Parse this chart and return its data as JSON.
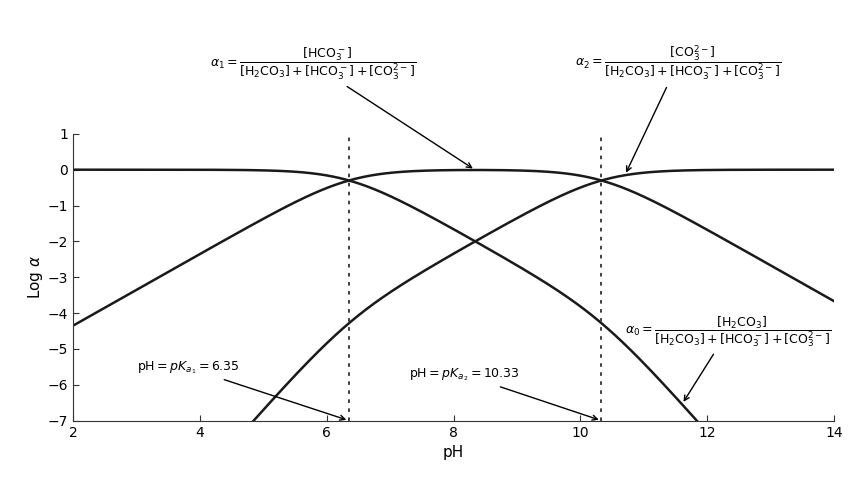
{
  "pKa1": 6.35,
  "pKa2": 10.33,
  "pH_min": 2,
  "pH_max": 14,
  "y_min": -7,
  "y_max": 1,
  "yticks": [
    1,
    0,
    -1,
    -2,
    -3,
    -4,
    -5,
    -6,
    -7
  ],
  "xticks": [
    2,
    4,
    6,
    8,
    10,
    12,
    14
  ],
  "xlabel": "pH",
  "ylabel": "Log $\\alpha$",
  "line_color": "#1a1a1a",
  "bg_color": "#ffffff",
  "vline_color": "#333333"
}
